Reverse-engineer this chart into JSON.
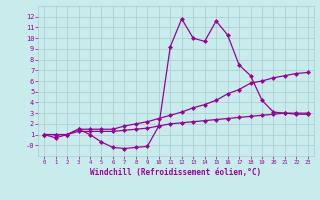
{
  "xlabel": "Windchill (Refroidissement éolien,°C)",
  "x_values": [
    0,
    1,
    2,
    3,
    4,
    5,
    6,
    7,
    8,
    9,
    10,
    11,
    12,
    13,
    14,
    15,
    16,
    17,
    18,
    19,
    20,
    21,
    22,
    23
  ],
  "line1": [
    1,
    0.7,
    1.0,
    1.5,
    1.0,
    0.3,
    -0.2,
    -0.3,
    -0.2,
    -0.1,
    1.8,
    9.2,
    11.8,
    10.0,
    9.7,
    11.6,
    10.3,
    7.5,
    6.5,
    4.2,
    3.1,
    3.0,
    2.9,
    2.9
  ],
  "line2": [
    1,
    1,
    1,
    1.5,
    1.5,
    1.5,
    1.5,
    1.8,
    2.0,
    2.2,
    2.5,
    2.8,
    3.1,
    3.5,
    3.8,
    4.2,
    4.8,
    5.2,
    5.8,
    6.0,
    6.3,
    6.5,
    6.7,
    6.8
  ],
  "line3": [
    1,
    1,
    1,
    1.3,
    1.3,
    1.3,
    1.3,
    1.4,
    1.5,
    1.6,
    1.8,
    2.0,
    2.1,
    2.2,
    2.3,
    2.4,
    2.5,
    2.6,
    2.7,
    2.8,
    2.9,
    3.0,
    3.0,
    3.0
  ],
  "line_color": "#9b009b",
  "bg_color": "#c8ecec",
  "grid_color": "#a8cccc",
  "ylim": [
    -1,
    13
  ],
  "xlim": [
    -0.5,
    23.5
  ],
  "yticks": [
    0,
    1,
    2,
    3,
    4,
    5,
    6,
    7,
    8,
    9,
    10,
    11,
    12
  ],
  "ytick_labels": [
    "-0",
    "1",
    "2",
    "3",
    "4",
    "5",
    "6",
    "7",
    "8",
    "9",
    "10",
    "11",
    "12"
  ],
  "xticks": [
    0,
    1,
    2,
    3,
    4,
    5,
    6,
    7,
    8,
    9,
    10,
    11,
    12,
    13,
    14,
    15,
    16,
    17,
    18,
    19,
    20,
    21,
    22,
    23
  ],
  "marker": "D",
  "markersize": 2.5
}
